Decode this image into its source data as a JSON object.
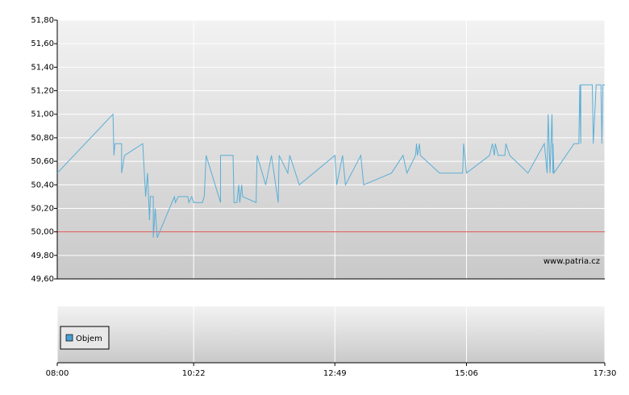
{
  "chart_data": [
    {
      "type": "line",
      "x": [
        "08:00",
        "08:58",
        "08:59",
        "09:00",
        "09:07",
        "09:07",
        "09:10",
        "09:29",
        "09:32",
        "09:34",
        "09:36",
        "09:37",
        "09:40",
        "09:40",
        "09:42",
        "09:44",
        "10:02",
        "10:03",
        "10:06",
        "10:08",
        "10:16",
        "10:17",
        "10:20",
        "10:22",
        "10:31",
        "10:33",
        "10:35",
        "10:50",
        "10:50",
        "11:03",
        "11:04",
        "11:07",
        "11:09",
        "11:10",
        "11:12",
        "11:13",
        "11:27",
        "11:28",
        "11:37",
        "11:43",
        "11:50",
        "11:51",
        "12:00",
        "12:02",
        "12:12",
        "12:49",
        "12:51",
        "12:57",
        "13:00",
        "13:16",
        "13:19",
        "13:48",
        "14:00",
        "14:04",
        "14:13",
        "14:14",
        "14:15",
        "14:17",
        "14:18",
        "14:38",
        "15:02",
        "15:03",
        "15:06",
        "15:30",
        "15:33",
        "15:35",
        "15:36",
        "15:39",
        "15:46",
        "15:47",
        "15:51",
        "16:10",
        "16:27",
        "16:30",
        "16:31",
        "16:33",
        "16:35",
        "16:36",
        "16:36",
        "16:37",
        "16:58",
        "17:03",
        "17:04",
        "17:05",
        "17:05",
        "17:17",
        "17:18",
        "17:21",
        "17:26",
        "17:27",
        "17:28",
        "17:30"
      ],
      "series": [
        {
          "color": "#5aaed6",
          "values": [
            50.5,
            51.0,
            50.65,
            50.75,
            50.75,
            50.5,
            50.65,
            50.75,
            50.3,
            50.5,
            50.1,
            50.3,
            50.3,
            49.95,
            50.2,
            49.95,
            50.3,
            50.25,
            50.3,
            50.3,
            50.3,
            50.25,
            50.3,
            50.25,
            50.25,
            50.3,
            50.65,
            50.25,
            50.65,
            50.65,
            50.25,
            50.25,
            50.4,
            50.25,
            50.4,
            50.3,
            50.25,
            50.65,
            50.4,
            50.65,
            50.25,
            50.65,
            50.5,
            50.65,
            50.4,
            50.65,
            50.4,
            50.65,
            50.4,
            50.65,
            50.4,
            50.5,
            50.65,
            50.5,
            50.65,
            50.75,
            50.65,
            50.75,
            50.65,
            50.5,
            50.5,
            50.75,
            50.5,
            50.65,
            50.75,
            50.65,
            50.75,
            50.65,
            50.65,
            50.75,
            50.65,
            50.5,
            50.75,
            50.5,
            51.0,
            50.5,
            51.0,
            50.5,
            50.75,
            50.5,
            50.75,
            50.75,
            51.25,
            50.75,
            51.25,
            51.25,
            50.75,
            51.25,
            51.25,
            50.75,
            51.25,
            51.25
          ]
        }
      ],
      "xlim": [
        "08:00",
        "17:30"
      ],
      "ylim": [
        49.6,
        51.8
      ],
      "yticks": [
        {
          "value": 49.6,
          "label": "49,60"
        },
        {
          "value": 49.8,
          "label": "49,80"
        },
        {
          "value": 50.0,
          "label": "50,00"
        },
        {
          "value": 50.2,
          "label": "50,20"
        },
        {
          "value": 50.4,
          "label": "50,40"
        },
        {
          "value": 50.6,
          "label": "50,60"
        },
        {
          "value": 50.8,
          "label": "50,80"
        },
        {
          "value": 51.0,
          "label": "51,00"
        },
        {
          "value": 51.2,
          "label": "51,20"
        },
        {
          "value": 51.4,
          "label": "51,40"
        },
        {
          "value": 51.6,
          "label": "51,60"
        },
        {
          "value": 51.8,
          "label": "51,80"
        }
      ],
      "reference_line": {
        "value": 50.0,
        "color": "#e05050"
      },
      "grid": true,
      "annotation": "www.patria.cz"
    },
    {
      "type": "bar",
      "series": [
        {
          "name": "Objem",
          "color": "#4a9fd4",
          "values": []
        }
      ],
      "xlim": [
        "08:00",
        "17:30"
      ],
      "xticks": [
        "08:00",
        "10:22",
        "12:49",
        "15:06",
        "17:30"
      ],
      "legend": "top-left"
    }
  ]
}
